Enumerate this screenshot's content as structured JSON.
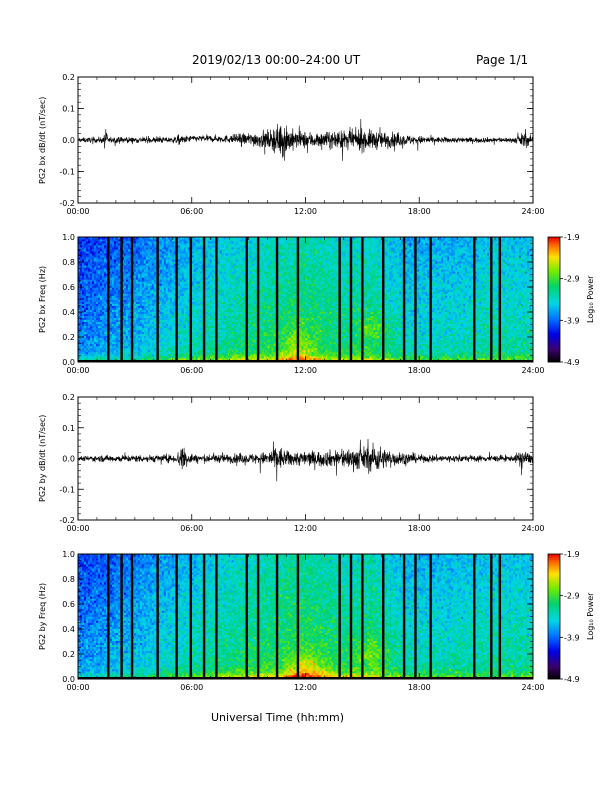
{
  "header": {
    "title": "2019/02/13  00:00–24:00 UT",
    "page": "Page 1/1"
  },
  "x_axis_title": "Universal Time (hh:mm)",
  "colorbar": {
    "label": "Log₁₀ Power",
    "ticks": [
      "-1.9",
      "-2.9",
      "-3.9",
      "-4.9"
    ],
    "range": [
      -4.9,
      -1.9
    ]
  },
  "chart_data": [
    {
      "type": "line",
      "ylabel": "PG2 bx dB/dt (nT/sec)",
      "xlim": [
        0,
        24
      ],
      "ylim": [
        -0.2,
        0.2
      ],
      "x_ticks": [
        "00:00",
        "06:00",
        "12:00",
        "18:00",
        "24:00"
      ],
      "y_ticks": [
        "0.2",
        "0.1",
        "0.0",
        "-0.1",
        "-0.2"
      ],
      "amplitude_profile": [
        {
          "h": 0,
          "a": 0.012
        },
        {
          "h": 1.3,
          "a": 0.015
        },
        {
          "h": 1.45,
          "a": 0.06
        },
        {
          "h": 1.6,
          "a": 0.015
        },
        {
          "h": 5,
          "a": 0.015
        },
        {
          "h": 5.3,
          "a": 0.025
        },
        {
          "h": 6,
          "a": 0.015
        },
        {
          "h": 8,
          "a": 0.02
        },
        {
          "h": 9,
          "a": 0.035
        },
        {
          "h": 10.2,
          "a": 0.05
        },
        {
          "h": 10.9,
          "a": 0.1
        },
        {
          "h": 11.4,
          "a": 0.045
        },
        {
          "h": 13,
          "a": 0.04
        },
        {
          "h": 15,
          "a": 0.055
        },
        {
          "h": 16,
          "a": 0.045
        },
        {
          "h": 17.5,
          "a": 0.025
        },
        {
          "h": 19,
          "a": 0.015
        },
        {
          "h": 23,
          "a": 0.012
        },
        {
          "h": 23.5,
          "a": 0.04
        },
        {
          "h": 24,
          "a": 0.02
        }
      ],
      "bias": [
        {
          "h": 0,
          "b": 0
        },
        {
          "h": 5.5,
          "b": 0
        },
        {
          "h": 6,
          "b": 0.005
        },
        {
          "h": 12,
          "b": 0
        },
        {
          "h": 24,
          "b": 0
        }
      ]
    },
    {
      "type": "heatmap",
      "ylabel": "PG2 bx Freq (Hz)",
      "xlim": [
        0,
        24
      ],
      "ylim": [
        0,
        1
      ],
      "x_ticks": [
        "00:00",
        "06:00",
        "12:00",
        "18:00",
        "24:00"
      ],
      "y_ticks": [
        "1.0",
        "0.8",
        "0.6",
        "0.4",
        "0.2",
        "0.0"
      ],
      "z_range": [
        -4.9,
        -1.9
      ],
      "background_profile": [
        {
          "h": 0,
          "z": -3.75
        },
        {
          "h": 3,
          "z": -3.55
        },
        {
          "h": 6,
          "z": -3.3
        },
        {
          "h": 9,
          "z": -3.1
        },
        {
          "h": 11,
          "z": -3.0
        },
        {
          "h": 12,
          "z": -2.95
        },
        {
          "h": 14,
          "z": -3.1
        },
        {
          "h": 15.5,
          "z": -3.05
        },
        {
          "h": 17.5,
          "z": -3.35
        },
        {
          "h": 20,
          "z": -3.3
        },
        {
          "h": 22,
          "z": -3.2
        },
        {
          "h": 24,
          "z": -3.25
        }
      ],
      "low_freq_enhancement": [
        {
          "h": 0,
          "dz": 0.7
        },
        {
          "h": 5,
          "dz": 0.9
        },
        {
          "h": 9,
          "dz": 1.1
        },
        {
          "h": 11,
          "dz": 1.3
        },
        {
          "h": 12,
          "dz": 1.2
        },
        {
          "h": 16,
          "dz": 1.0
        },
        {
          "h": 20,
          "dz": 0.8
        },
        {
          "h": 24,
          "dz": 0.7
        }
      ],
      "hot_patches": [
        {
          "h": 11.6,
          "f": 0.12,
          "dh": 0.7,
          "df": 0.18,
          "dz": 0.35
        },
        {
          "h": 15.6,
          "f": 0.27,
          "dh": 0.8,
          "df": 0.1,
          "dz": 0.3
        }
      ],
      "data_gaps_hours": [
        1.6,
        2.3,
        2.85,
        4.2,
        5.2,
        5.95,
        6.65,
        7.3,
        8.9,
        9.5,
        10.5,
        11.6,
        13.8,
        14.4,
        15.0,
        16.1,
        17.2,
        17.8,
        18.6,
        20.9,
        21.8,
        22.25
      ]
    },
    {
      "type": "line",
      "ylabel": "PG2 by dB/dt (nT/sec)",
      "xlim": [
        0,
        24
      ],
      "ylim": [
        -0.2,
        0.2
      ],
      "x_ticks": [
        "00:00",
        "06:00",
        "12:00",
        "18:00",
        "24:00"
      ],
      "y_ticks": [
        "0.2",
        "0.1",
        "0.0",
        "-0.1",
        "-0.2"
      ],
      "amplitude_profile": [
        {
          "h": 0,
          "a": 0.012
        },
        {
          "h": 1.5,
          "a": 0.018
        },
        {
          "h": 5.2,
          "a": 0.02
        },
        {
          "h": 5.5,
          "a": 0.09
        },
        {
          "h": 5.8,
          "a": 0.02
        },
        {
          "h": 6,
          "a": 0.04
        },
        {
          "h": 6.1,
          "a": 0.02
        },
        {
          "h": 9,
          "a": 0.025
        },
        {
          "h": 10,
          "a": 0.035
        },
        {
          "h": 10.5,
          "a": 0.075
        },
        {
          "h": 11,
          "a": 0.04
        },
        {
          "h": 13,
          "a": 0.04
        },
        {
          "h": 15.3,
          "a": 0.065
        },
        {
          "h": 15.7,
          "a": 0.08
        },
        {
          "h": 16.2,
          "a": 0.05
        },
        {
          "h": 18,
          "a": 0.02
        },
        {
          "h": 23,
          "a": 0.015
        },
        {
          "h": 23.4,
          "a": 0.05
        },
        {
          "h": 24,
          "a": 0.02
        }
      ],
      "bias": [
        {
          "h": 0,
          "b": 0
        },
        {
          "h": 24,
          "b": 0
        }
      ]
    },
    {
      "type": "heatmap",
      "ylabel": "PG2 by Freq (Hz)",
      "xlim": [
        0,
        24
      ],
      "ylim": [
        0,
        1
      ],
      "x_ticks": [
        "00:00",
        "06:00",
        "12:00",
        "18:00",
        "24:00"
      ],
      "y_ticks": [
        "1.0",
        "0.8",
        "0.6",
        "0.4",
        "0.2",
        "0.0"
      ],
      "z_range": [
        -4.9,
        -1.9
      ],
      "background_profile": [
        {
          "h": 0,
          "z": -3.7
        },
        {
          "h": 3,
          "z": -3.5
        },
        {
          "h": 6,
          "z": -3.25
        },
        {
          "h": 9,
          "z": -3.05
        },
        {
          "h": 11,
          "z": -2.95
        },
        {
          "h": 12,
          "z": -2.9
        },
        {
          "h": 14,
          "z": -3.05
        },
        {
          "h": 15.5,
          "z": -3.0
        },
        {
          "h": 17.5,
          "z": -3.3
        },
        {
          "h": 20,
          "z": -3.25
        },
        {
          "h": 22,
          "z": -3.2
        },
        {
          "h": 24,
          "z": -3.2
        }
      ],
      "low_freq_enhancement": [
        {
          "h": 0,
          "dz": 0.6
        },
        {
          "h": 5,
          "dz": 0.85
        },
        {
          "h": 9,
          "dz": 1.1
        },
        {
          "h": 11.5,
          "dz": 1.35
        },
        {
          "h": 12.5,
          "dz": 1.3
        },
        {
          "h": 16,
          "dz": 1.0
        },
        {
          "h": 20,
          "dz": 0.8
        },
        {
          "h": 24,
          "dz": 0.7
        }
      ],
      "hot_patches": [
        {
          "h": 12.0,
          "f": 0.08,
          "dh": 1.0,
          "df": 0.12,
          "dz": 0.45
        },
        {
          "h": 15.4,
          "f": 0.22,
          "dh": 0.9,
          "df": 0.12,
          "dz": 0.3
        }
      ],
      "data_gaps_hours": [
        1.6,
        2.3,
        2.85,
        4.2,
        5.2,
        5.95,
        6.65,
        7.3,
        8.9,
        9.5,
        10.5,
        11.6,
        13.8,
        14.4,
        15.0,
        16.1,
        17.2,
        17.8,
        18.6,
        20.9,
        21.8,
        22.25
      ]
    }
  ]
}
